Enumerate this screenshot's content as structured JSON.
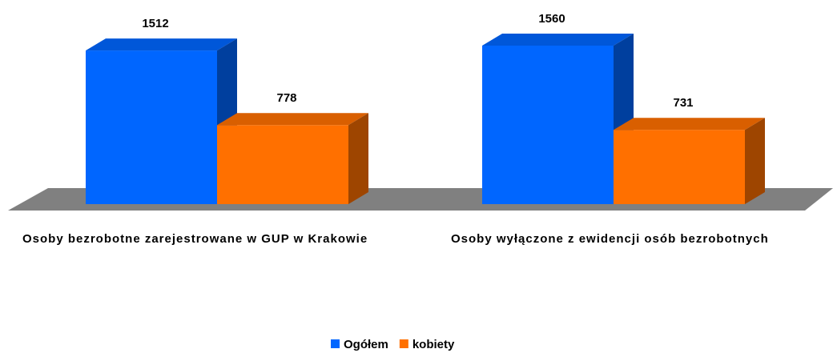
{
  "chart_data": {
    "type": "bar3d",
    "categories": [
      "Osoby bezrobotne zarejestrowane w GUP w Krakowie",
      "Osoby wyłączone z ewidencji osób bezrobotnych"
    ],
    "series": [
      {
        "name": "Ogółem",
        "color": "#0066ff",
        "values": [
          1512,
          1560
        ]
      },
      {
        "name": "kobiety",
        "color": "#ff7000",
        "values": [
          778,
          731
        ]
      }
    ],
    "legend": "bottom"
  }
}
